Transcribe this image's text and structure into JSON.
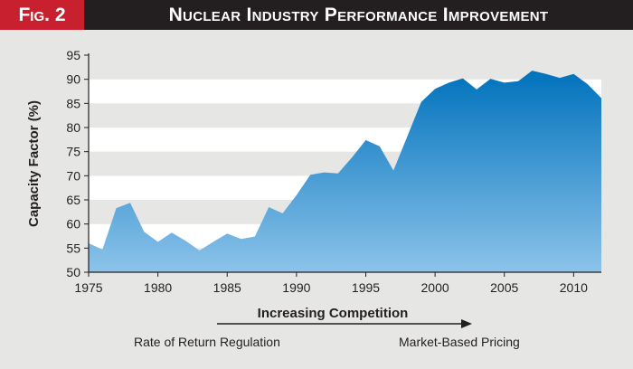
{
  "header": {
    "fig_label": "Fig. 2",
    "title": "Nuclear Industry Performance Improvement"
  },
  "annotations": {
    "arrow_label": "Increasing Competition",
    "left_label": "Rate of Return Regulation",
    "right_label": "Market-Based Pricing"
  },
  "colors": {
    "fig_red": "#c8202f",
    "header_dark": "#231f20",
    "area_top": "#0072bc",
    "area_bottom": "#8cc3ea",
    "band_gray": "#e6e6e5"
  },
  "chart_data": {
    "type": "area",
    "title": "Nuclear Industry Performance Improvement",
    "xlabel": "",
    "ylabel": "Capacity Factor (%)",
    "xlim": [
      1975,
      2012
    ],
    "ylim": [
      50,
      95
    ],
    "xticks": [
      1975,
      1980,
      1985,
      1990,
      1995,
      2000,
      2005,
      2010
    ],
    "yticks": [
      50,
      55,
      60,
      65,
      70,
      75,
      80,
      85,
      90,
      95
    ],
    "grid": "alternating horizontal bands",
    "x": [
      1975,
      1976,
      1977,
      1978,
      1979,
      1980,
      1981,
      1982,
      1983,
      1984,
      1985,
      1986,
      1987,
      1988,
      1989,
      1990,
      1991,
      1992,
      1993,
      1994,
      1995,
      1996,
      1997,
      1998,
      1999,
      2000,
      2001,
      2002,
      2003,
      2004,
      2005,
      2006,
      2007,
      2008,
      2009,
      2010,
      2011,
      2012
    ],
    "values": [
      56.0,
      54.7,
      63.3,
      64.4,
      58.4,
      56.3,
      58.2,
      56.5,
      54.5,
      56.3,
      58.0,
      56.9,
      57.4,
      63.5,
      62.2,
      66.0,
      70.2,
      70.7,
      70.5,
      73.8,
      77.4,
      76.1,
      71.1,
      78.2,
      85.3,
      88.0,
      89.3,
      90.2,
      87.9,
      90.1,
      89.3,
      89.6,
      91.8,
      91.1,
      90.3,
      91.1,
      89.0,
      86.1
    ]
  }
}
